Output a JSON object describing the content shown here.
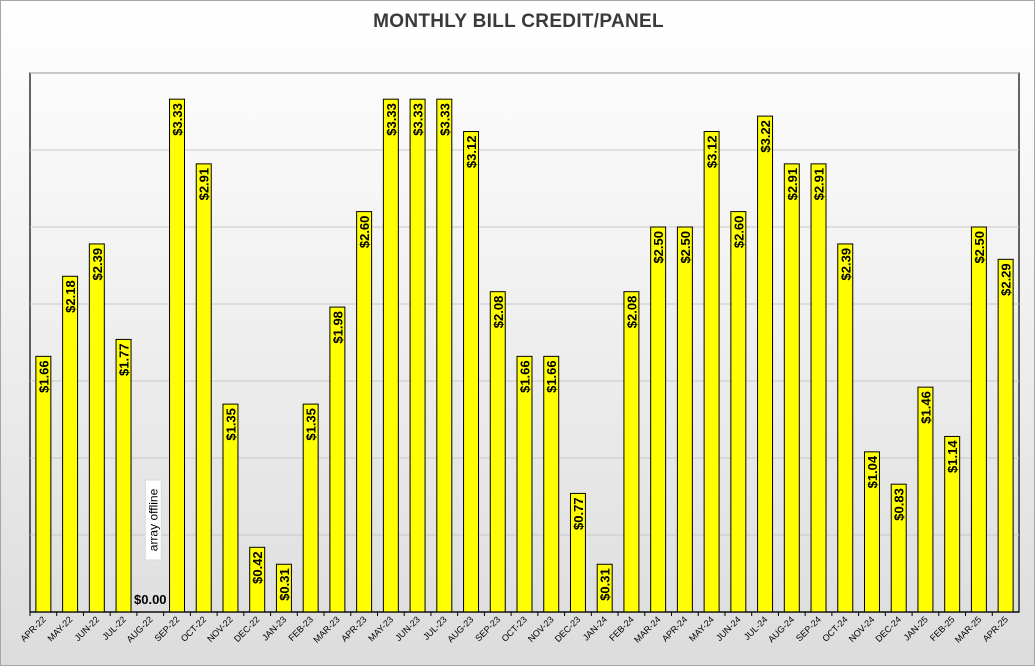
{
  "chart_data": {
    "type": "bar",
    "title": "MONTHLY BILL CREDIT/PANEL",
    "xlabel": "",
    "ylabel": "",
    "ylim": [
      0,
      3.5
    ],
    "grid": true,
    "legend": "none",
    "colors": {
      "bar": "#ffff00",
      "bar_border": "#000000",
      "grid": "#c8c8c8"
    },
    "categories": [
      "APR-22",
      "MAY-22",
      "JUN-22",
      "JUL-22",
      "AUG-22",
      "SEP-22",
      "OCT-22",
      "NOV-22",
      "DEC-22",
      "JAN-23",
      "FEB-23",
      "MAR-23",
      "APR-23",
      "MAY-23",
      "JUN-23",
      "JUL-23",
      "AUG-23",
      "SEP-23",
      "OCT-23",
      "NOV-23",
      "DEC-23",
      "JAN-24",
      "FEB-24",
      "MAR-24",
      "APR-24",
      "MAY-24",
      "JUN-24",
      "JUL-24",
      "AUG-24",
      "SEP-24",
      "OCT-24",
      "NOV-24",
      "DEC-24",
      "JAN-25",
      "FEB-25",
      "MAR-25",
      "APR-25"
    ],
    "values": [
      1.66,
      2.18,
      2.39,
      1.77,
      0.0,
      3.33,
      2.91,
      1.35,
      0.42,
      0.31,
      1.35,
      1.98,
      2.6,
      3.33,
      3.33,
      3.33,
      3.12,
      2.08,
      1.66,
      1.66,
      0.77,
      0.31,
      2.08,
      2.5,
      2.5,
      3.12,
      2.6,
      3.22,
      2.91,
      2.91,
      2.39,
      1.04,
      0.83,
      1.46,
      1.14,
      2.5,
      2.29
    ],
    "data_labels": [
      "$1.66",
      "$2.18",
      "$2.39",
      "$1.77",
      "$0.00",
      "$3.33",
      "$2.91",
      "$1.35",
      "$0.42",
      "$0.31",
      "$1.35",
      "$1.98",
      "$2.60",
      "$3.33",
      "$3.33",
      "$3.33",
      "$3.12",
      "$2.08",
      "$1.66",
      "$1.66",
      "$0.77",
      "$0.31",
      "$2.08",
      "$2.50",
      "$2.50",
      "$3.12",
      "$2.60",
      "$3.22",
      "$2.91",
      "$2.91",
      "$2.39",
      "$1.04",
      "$0.83",
      "$1.46",
      "$1.14",
      "$2.50",
      "$2.29"
    ],
    "annotations": [
      {
        "category": "AUG-22",
        "text": "array offline"
      }
    ]
  }
}
